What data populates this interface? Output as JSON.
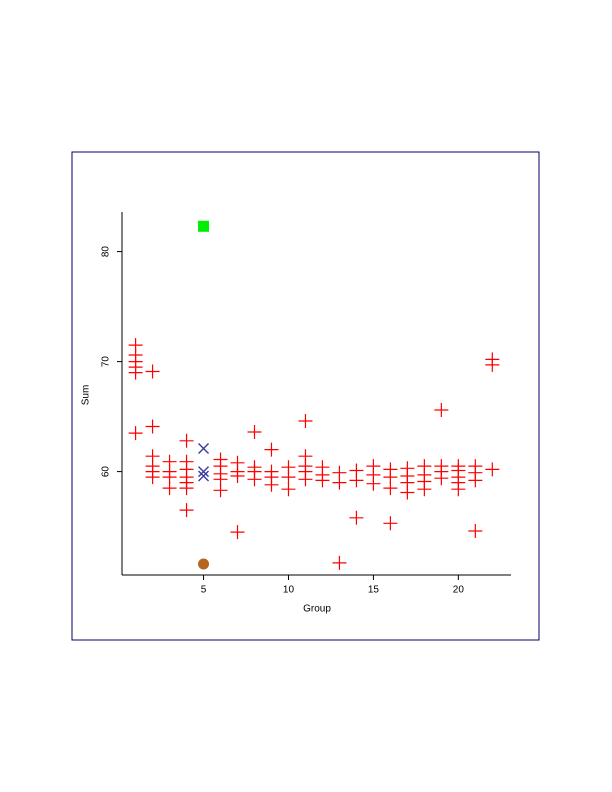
{
  "chart_data": {
    "type": "scatter",
    "xlabel": "Group",
    "ylabel": "Sum",
    "xlim": [
      0.2,
      23.1
    ],
    "ylim": [
      50.6,
      83.6
    ],
    "xticks": [
      5,
      10,
      15,
      20
    ],
    "yticks": [
      60,
      70,
      80
    ],
    "series": [
      {
        "marker": "plus",
        "color": "#ff0000",
        "x": [
          1,
          1,
          1,
          1,
          1,
          1,
          2,
          2,
          2,
          2,
          2,
          2,
          3,
          3,
          3,
          3,
          4,
          4,
          4,
          4,
          4,
          4,
          4,
          6,
          6,
          6,
          6,
          6,
          7,
          7,
          7,
          7,
          8,
          8,
          8,
          8,
          9,
          9,
          9,
          9,
          10,
          10,
          10,
          11,
          11,
          11,
          11,
          11,
          12,
          12,
          12,
          13,
          13,
          13,
          14,
          14,
          14,
          15,
          15,
          15,
          16,
          16,
          16,
          16,
          17,
          17,
          17,
          17,
          18,
          18,
          18,
          18,
          19,
          19,
          19,
          19,
          20,
          20,
          20,
          20,
          20,
          21,
          21,
          21,
          21,
          22,
          22,
          22
        ],
        "values": [
          71.5,
          70.6,
          70.0,
          69.5,
          69.0,
          63.5,
          69.1,
          64.1,
          61.4,
          60.5,
          60,
          59.5,
          60.9,
          60,
          59.5,
          58.5,
          62.8,
          60.9,
          60.2,
          59.5,
          59,
          58.5,
          56.5,
          61.1,
          60.5,
          59.8,
          59.3,
          58.3,
          60.8,
          60,
          59.6,
          54.5,
          63.6,
          60.4,
          60,
          59.3,
          62,
          60,
          59.5,
          58.8,
          60.4,
          59.5,
          58.4,
          64.6,
          61.4,
          60.5,
          60,
          59.3,
          60.4,
          59.7,
          59.2,
          59.9,
          59,
          51.7,
          60.1,
          59.2,
          55.8,
          60.5,
          59.7,
          58.9,
          60.2,
          59.5,
          58.5,
          55.3,
          60.3,
          59.6,
          59,
          58.1,
          60.5,
          59.7,
          59.1,
          58.4,
          65.6,
          60.5,
          60,
          59.4,
          60.5,
          60.1,
          59.5,
          59,
          58.4,
          60.5,
          59.9,
          59.2,
          54.6,
          70.2,
          69.7,
          60.2
        ]
      },
      {
        "marker": "cross",
        "color": "#3a3aa0",
        "x": [
          5,
          5,
          5
        ],
        "values": [
          62.1,
          60,
          59.6
        ]
      },
      {
        "marker": "square",
        "color": "#00ee00",
        "x": [
          5
        ],
        "values": [
          82.3
        ]
      },
      {
        "marker": "circle",
        "color": "#b5651d",
        "x": [
          5
        ],
        "values": [
          51.6
        ]
      }
    ]
  }
}
